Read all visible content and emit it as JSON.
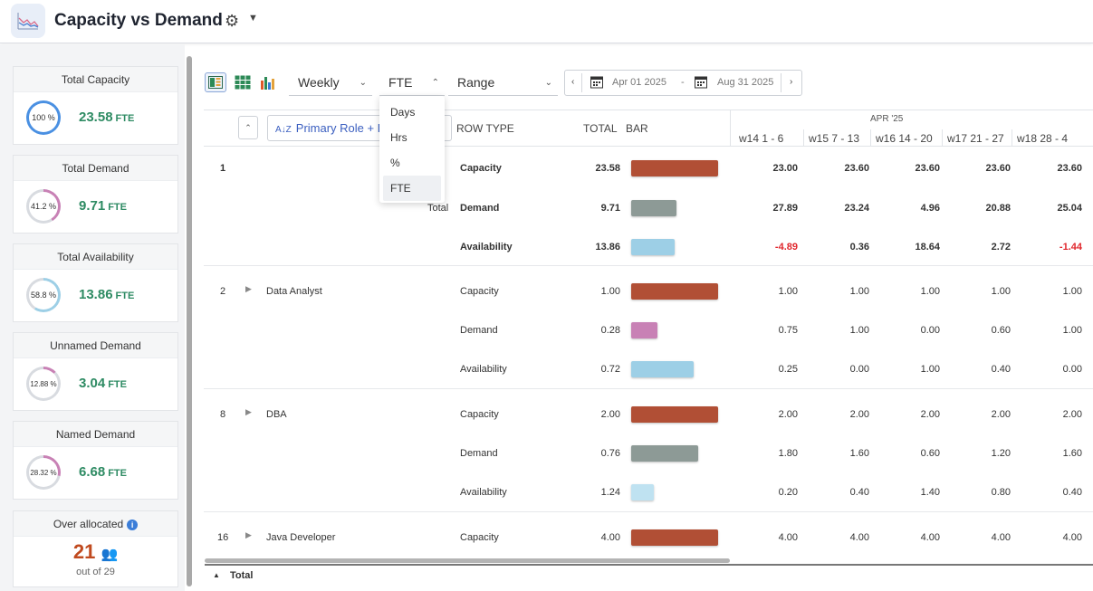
{
  "header": {
    "title": "Capacity vs Demand"
  },
  "sidebar": {
    "cards": [
      {
        "title": "Total Capacity",
        "pct": "100 %",
        "value": "23.58",
        "unit": "FTE",
        "fraction": 1.0,
        "ring_color": "#4a90e2"
      },
      {
        "title": "Total Demand",
        "pct": "41.2 %",
        "value": "9.71",
        "unit": "FTE",
        "fraction": 0.412,
        "ring_color": "#c881b5"
      },
      {
        "title": "Total Availability",
        "pct": "58.8 %",
        "value": "13.86",
        "unit": "FTE",
        "fraction": 0.588,
        "ring_color": "#9dcfe6"
      },
      {
        "title": "Unnamed Demand",
        "pct": "12.88 %",
        "value": "3.04",
        "unit": "FTE",
        "fraction": 0.1288,
        "ring_color": "#c881b5"
      },
      {
        "title": "Named Demand",
        "pct": "28.32 %",
        "value": "6.68",
        "unit": "FTE",
        "fraction": 0.2832,
        "ring_color": "#c881b5"
      }
    ],
    "over_allocated": {
      "title": "Over allocated",
      "count": "21",
      "sub": "out of 29"
    }
  },
  "toolbar": {
    "period": "Weekly",
    "unit": "FTE",
    "range": "Range",
    "date_from": "Apr 01 2025",
    "date_sep": "-",
    "date_to": "Aug 31 2025"
  },
  "unit_options": [
    "Days",
    "Hrs",
    "%",
    "FTE"
  ],
  "grid": {
    "role_button": "Primary Role + Ro",
    "col_row_type": "ROW TYPE",
    "col_total": "TOTAL",
    "col_bar": "BAR",
    "month": "APR '25",
    "weeks": [
      "w14  1 - 6",
      "w15  7 - 13",
      "w16  14 - 20",
      "w17  21 - 27",
      "w18  28 - 4"
    ],
    "total_label": "Total",
    "groups": [
      {
        "id": "1",
        "name": "",
        "label": "Total",
        "bold": true,
        "rows": [
          {
            "type": "Capacity",
            "total": "23.58",
            "frac": 1.0,
            "kind": "cap",
            "weeks": [
              "23.00",
              "23.60",
              "23.60",
              "23.60",
              "23.60"
            ]
          },
          {
            "type": "Demand",
            "total": "9.71",
            "frac": 0.52,
            "kind": "dem",
            "weeks": [
              "27.89",
              "23.24",
              "4.96",
              "20.88",
              "25.04"
            ]
          },
          {
            "type": "Availability",
            "total": "13.86",
            "frac": 0.5,
            "kind": "avl",
            "weeks": [
              "-4.89",
              "0.36",
              "18.64",
              "2.72",
              "-1.44"
            ]
          }
        ]
      },
      {
        "id": "2",
        "name": "Data Analyst",
        "label": "",
        "bold": false,
        "rows": [
          {
            "type": "Capacity",
            "total": "1.00",
            "frac": 1.0,
            "kind": "cap",
            "weeks": [
              "1.00",
              "1.00",
              "1.00",
              "1.00",
              "1.00"
            ]
          },
          {
            "type": "Demand",
            "total": "0.28",
            "frac": 0.3,
            "kind": "dem-pink",
            "weeks": [
              "0.75",
              "1.00",
              "0.00",
              "0.60",
              "1.00"
            ]
          },
          {
            "type": "Availability",
            "total": "0.72",
            "frac": 0.72,
            "kind": "avl",
            "weeks": [
              "0.25",
              "0.00",
              "1.00",
              "0.40",
              "0.00"
            ]
          }
        ]
      },
      {
        "id": "8",
        "name": "DBA",
        "label": "",
        "bold": false,
        "rows": [
          {
            "type": "Capacity",
            "total": "2.00",
            "frac": 1.0,
            "kind": "cap",
            "weeks": [
              "2.00",
              "2.00",
              "2.00",
              "2.00",
              "2.00"
            ]
          },
          {
            "type": "Demand",
            "total": "0.76",
            "frac": 0.77,
            "kind": "dem",
            "weeks": [
              "1.80",
              "1.60",
              "0.60",
              "1.20",
              "1.60"
            ]
          },
          {
            "type": "Availability",
            "total": "1.24",
            "frac": 0.26,
            "kind": "avl-light",
            "weeks": [
              "0.20",
              "0.40",
              "1.40",
              "0.80",
              "0.40"
            ]
          }
        ]
      },
      {
        "id": "16",
        "name": "Java Developer",
        "label": "",
        "bold": false,
        "rows": [
          {
            "type": "Capacity",
            "total": "4.00",
            "frac": 1.0,
            "kind": "cap",
            "weeks": [
              "4.00",
              "4.00",
              "4.00",
              "4.00",
              "4.00"
            ]
          }
        ]
      }
    ]
  }
}
